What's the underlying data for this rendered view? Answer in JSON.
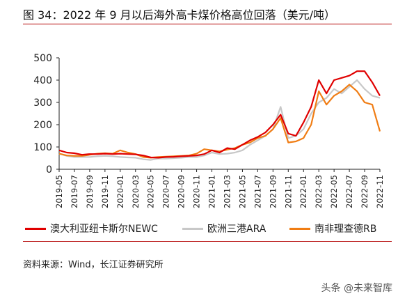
{
  "title": "图 34：2022 年 9 月以后海外高卡煤价格高位回落（美元/吨）",
  "source": "资料来源：Wind，长江证券研究所",
  "watermark": "头条 @未来智库",
  "colors": {
    "newc": "#e00000",
    "ara": "#c8c8c8",
    "rb": "#f07d14",
    "accent": "#b30000"
  },
  "chart_data": {
    "type": "line",
    "xlabel": "",
    "ylabel": "",
    "ylim": [
      0,
      500
    ],
    "yticks": [
      0,
      100,
      200,
      300,
      400,
      500
    ],
    "xticks": [
      "2019-05",
      "2019-07",
      "2019-09",
      "2019-11",
      "2020-01",
      "2020-03",
      "2020-05",
      "2020-07",
      "2020-09",
      "2020-11",
      "2021-01",
      "2021-03",
      "2021-05",
      "2021-07",
      "2021-09",
      "2021-11",
      "2022-01",
      "2022-03",
      "2022-05",
      "2022-07",
      "2022-09",
      "2022-11"
    ],
    "grid": false,
    "legend_position": "bottom",
    "x": [
      "2019-05",
      "2019-06",
      "2019-07",
      "2019-08",
      "2019-09",
      "2019-10",
      "2019-11",
      "2019-12",
      "2020-01",
      "2020-02",
      "2020-03",
      "2020-04",
      "2020-05",
      "2020-06",
      "2020-07",
      "2020-08",
      "2020-09",
      "2020-10",
      "2020-11",
      "2020-12",
      "2021-01",
      "2021-02",
      "2021-03",
      "2021-04",
      "2021-05",
      "2021-06",
      "2021-07",
      "2021-08",
      "2021-09",
      "2021-10",
      "2021-11",
      "2021-12",
      "2022-01",
      "2022-02",
      "2022-03",
      "2022-04",
      "2022-05",
      "2022-06",
      "2022-07",
      "2022-08",
      "2022-09",
      "2022-10",
      "2022-11"
    ],
    "series": [
      {
        "name": "澳大利亚纽卡斯尔NEWC",
        "color": "#e00000",
        "values": [
          85,
          75,
          72,
          65,
          68,
          68,
          70,
          68,
          70,
          68,
          67,
          62,
          53,
          52,
          55,
          56,
          58,
          60,
          62,
          68,
          85,
          75,
          95,
          90,
          110,
          130,
          145,
          165,
          200,
          245,
          160,
          150,
          210,
          280,
          400,
          340,
          400,
          410,
          420,
          440,
          440,
          390,
          330
        ]
      },
      {
        "name": "欧洲三港ARA",
        "color": "#c8c8c8",
        "values": [
          70,
          60,
          55,
          55,
          55,
          58,
          60,
          58,
          55,
          53,
          52,
          45,
          42,
          48,
          48,
          50,
          52,
          55,
          55,
          62,
          75,
          68,
          70,
          75,
          85,
          110,
          130,
          150,
          180,
          280,
          140,
          150,
          180,
          250,
          300,
          320,
          360,
          340,
          370,
          400,
          360,
          330,
          320
        ]
      },
      {
        "name": "南非理查德RB",
        "color": "#f07d14",
        "values": [
          70,
          62,
          60,
          60,
          65,
          70,
          72,
          70,
          85,
          75,
          68,
          55,
          52,
          55,
          57,
          58,
          60,
          62,
          70,
          90,
          85,
          80,
          88,
          95,
          110,
          120,
          140,
          150,
          180,
          230,
          120,
          125,
          140,
          200,
          350,
          290,
          330,
          350,
          380,
          350,
          300,
          290,
          170
        ]
      }
    ]
  }
}
